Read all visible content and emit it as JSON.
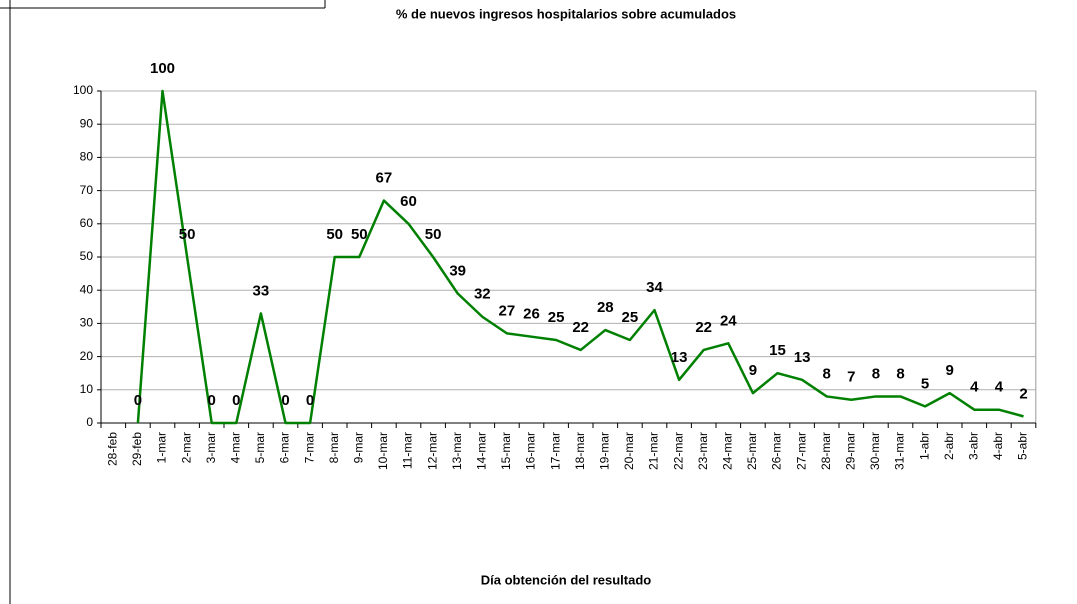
{
  "chart_data": {
    "type": "line",
    "title": "% de nuevos ingresos hospitalarios sobre acumulados",
    "x_label": "Día obtención del resultado",
    "categories": [
      "28-feb",
      "29-feb",
      "1-mar",
      "2-mar",
      "3-mar",
      "4-mar",
      "5-mar",
      "6-mar",
      "7-mar",
      "8-mar",
      "9-mar",
      "10-mar",
      "11-mar",
      "12-mar",
      "13-mar",
      "14-mar",
      "15-mar",
      "16-mar",
      "17-mar",
      "18-mar",
      "19-mar",
      "20-mar",
      "21-mar",
      "22-mar",
      "23-mar",
      "24-mar",
      "25-mar",
      "26-mar",
      "27-mar",
      "28-mar",
      "29-mar",
      "30-mar",
      "31-mar",
      "1-abr",
      "2-abr",
      "3-abr",
      "4-abr",
      "5-abr"
    ],
    "values": [
      null,
      0,
      100,
      50,
      0,
      0,
      33,
      0,
      0,
      50,
      50,
      67,
      60,
      50,
      39,
      32,
      27,
      26,
      25,
      22,
      28,
      25,
      34,
      13,
      22,
      24,
      9,
      15,
      13,
      8,
      7,
      8,
      8,
      5,
      9,
      4,
      4,
      2
    ],
    "color": "#008000",
    "ylim": [
      0,
      100
    ],
    "yticks": [
      0,
      10,
      20,
      30,
      40,
      50,
      60,
      70,
      80,
      90,
      100
    ],
    "grid": true
  }
}
